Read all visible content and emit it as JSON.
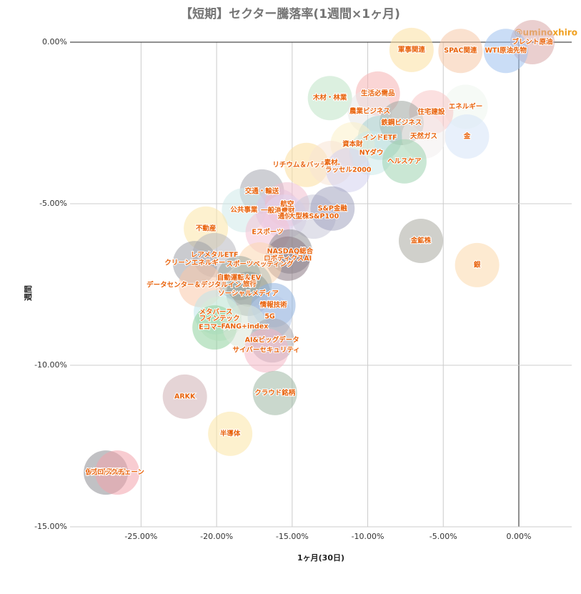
{
  "chart_data": {
    "type": "bubble",
    "title": "【短期】セクター騰落率(1週間×1ヶ月)",
    "watermark": "@uminoxhiro",
    "x_label": "1ヶ月(30日)",
    "y_label": "週間",
    "xlim": [
      -29.7,
      3.5
    ],
    "ylim": [
      -15,
      0
    ],
    "xticks": [
      {
        "value": -25,
        "label": "-25.00%"
      },
      {
        "value": -20,
        "label": "-20.00%"
      },
      {
        "value": -15,
        "label": "-15.00%"
      },
      {
        "value": -10,
        "label": "-10.00%"
      },
      {
        "value": -5,
        "label": "-5.00%"
      },
      {
        "value": 0,
        "label": "0.00%"
      }
    ],
    "yticks": [
      {
        "value": 0,
        "label": "0.00%"
      },
      {
        "value": -5,
        "label": "-5.00%"
      },
      {
        "value": -10,
        "label": "-10.00%"
      },
      {
        "value": -15,
        "label": "-15.00%"
      }
    ],
    "grid": true,
    "points": [
      {
        "label": "ブレント原油",
        "x": 0.9,
        "y": 0,
        "color": "#d9a7a7"
      },
      {
        "label": "WTI原油先物",
        "x": -0.86,
        "y": -0.27,
        "color": "#9fc1ef"
      },
      {
        "label": "SPAC関連",
        "x": -3.86,
        "y": -0.27,
        "color": "#f6c9a8"
      },
      {
        "label": "軍事関連",
        "x": -7.1,
        "y": -0.24,
        "color": "#fbe0a0"
      },
      {
        "label": "木材・林業",
        "x": -12.5,
        "y": -1.73,
        "color": "#bfe3c6"
      },
      {
        "label": "生活必需品",
        "x": -9.33,
        "y": -1.59,
        "color": "#f6b3b3"
      },
      {
        "label": "エネルギー",
        "x": -3.52,
        "y": -2.0,
        "color": "#eef5ef"
      },
      {
        "label": "農業ビジネス",
        "x": -9.86,
        "y": -2.15,
        "color": "#e8e8e8"
      },
      {
        "label": "住宅建設",
        "x": -5.8,
        "y": -2.17,
        "color": "#f7c6c6"
      },
      {
        "label": "鉄鋼ビジネス",
        "x": -7.76,
        "y": -2.5,
        "color": "#9ea5a0"
      },
      {
        "label": "金",
        "x": -3.43,
        "y": -2.92,
        "color": "#d6e3f8"
      },
      {
        "label": "天然ガス",
        "x": -6.29,
        "y": -2.92,
        "color": "#f3eeee"
      },
      {
        "label": "インドETF",
        "x": -9.19,
        "y": -2.96,
        "color": "#a9d2cf"
      },
      {
        "label": "資本財",
        "x": -11.0,
        "y": -3.16,
        "color": "#fbf0c8"
      },
      {
        "label": "NYダウ",
        "x": -9.76,
        "y": -3.43,
        "color": "#cce9ea"
      },
      {
        "label": "ヘルスケア",
        "x": -7.57,
        "y": -3.69,
        "color": "#9fd4b0"
      },
      {
        "label": "リチウム＆バッテリー",
        "x": -14.05,
        "y": -3.8,
        "color": "#fbdf9f"
      },
      {
        "label": "素材",
        "x": -12.43,
        "y": -3.74,
        "color": "#f8e3d3"
      },
      {
        "label": "ラッセル2000",
        "x": -11.29,
        "y": -3.96,
        "color": "#d4d2ef"
      },
      {
        "label": "交通・輸送",
        "x": -17.0,
        "y": -4.62,
        "color": "#a5a8b0"
      },
      {
        "label": "公共事業",
        "x": -18.19,
        "y": -5.2,
        "color": "#cfeaea"
      },
      {
        "label": "一般消費財",
        "x": -15.95,
        "y": -5.22,
        "color": "#d8c9ea"
      },
      {
        "label": "航空",
        "x": -15.33,
        "y": -5.02,
        "color": "#f1bfd0"
      },
      {
        "label": "通信",
        "x": -15.5,
        "y": -5.4,
        "color": "#e2d6ee"
      },
      {
        "label": "大型株S&P100",
        "x": -13.57,
        "y": -5.4,
        "color": "#c9c9d9"
      },
      {
        "label": "S&P金融",
        "x": -12.33,
        "y": -5.15,
        "color": "#a2a4c0"
      },
      {
        "label": "不動産",
        "x": -20.71,
        "y": -5.77,
        "color": "#fce6a8"
      },
      {
        "label": "Eスポーツ",
        "x": -16.62,
        "y": -5.88,
        "color": "#f4c3d5"
      },
      {
        "label": "金鉱株",
        "x": -6.48,
        "y": -6.15,
        "color": "#a9a9a0"
      },
      {
        "label": "NASDAQ総合",
        "x": -15.14,
        "y": -6.48,
        "color": "#8f8f95"
      },
      {
        "label": "ロボティクスAI",
        "x": -15.29,
        "y": -6.7,
        "color": "#8c7a85"
      },
      {
        "label": "銀",
        "x": -2.76,
        "y": -6.9,
        "color": "#fcd8ab"
      },
      {
        "label": "レアメタルETF",
        "x": -20.14,
        "y": -6.59,
        "color": "#b8b8c0"
      },
      {
        "label": "クリーンエネルギー",
        "x": -21.43,
        "y": -6.84,
        "color": "#9ea0a8"
      },
      {
        "label": "スポーツベッティング",
        "x": -17.14,
        "y": -6.88,
        "color": "#fbd7b0"
      },
      {
        "label": "自動運転＆EV",
        "x": -18.52,
        "y": -7.3,
        "color": "#9aa89e"
      },
      {
        "label": "データセンター＆デジタルインフラ",
        "x": -21.05,
        "y": -7.52,
        "color": "#f9c9aa"
      },
      {
        "label": "旅行",
        "x": -17.81,
        "y": -7.5,
        "color": "#b4c0b8"
      },
      {
        "label": "ソーシャルメディア",
        "x": -17.9,
        "y": -7.79,
        "color": "#8f9a95"
      },
      {
        "label": "情報技術",
        "x": -16.24,
        "y": -8.14,
        "color": "#8fb2e0"
      },
      {
        "label": "メタバース",
        "x": -20.05,
        "y": -8.36,
        "color": "#bfe6ea"
      },
      {
        "label": "フィンテック",
        "x": -19.81,
        "y": -8.56,
        "color": "#d6ecd8"
      },
      {
        "label": "5G",
        "x": -16.48,
        "y": -8.5,
        "color": "#b7c9e8"
      },
      {
        "label": "Eコマース",
        "x": -20.14,
        "y": -8.83,
        "color": "#8fd29f"
      },
      {
        "label": "FANG+index",
        "x": -18.14,
        "y": -8.8,
        "color": "#d9e6d9"
      },
      {
        "label": "AI&ビッグデータ",
        "x": -16.33,
        "y": -9.23,
        "color": "#a8a8b0"
      },
      {
        "label": "サイバーセキュリティ",
        "x": -16.71,
        "y": -9.54,
        "color": "#f4b8c6"
      },
      {
        "label": "クラウド銘柄",
        "x": -16.14,
        "y": -10.86,
        "color": "#9fb8a4"
      },
      {
        "label": "ARKK",
        "x": -22.1,
        "y": -10.97,
        "color": "#cfb0b4"
      },
      {
        "label": "半導体",
        "x": -19.1,
        "y": -12.12,
        "color": "#fbe6a6"
      },
      {
        "label": "仮想通貨関連",
        "x": -27.33,
        "y": -13.32,
        "color": "#8e8e93"
      },
      {
        "label": "ブロックチェーン",
        "x": -26.57,
        "y": -13.32,
        "color": "#f3a3ac"
      }
    ]
  }
}
